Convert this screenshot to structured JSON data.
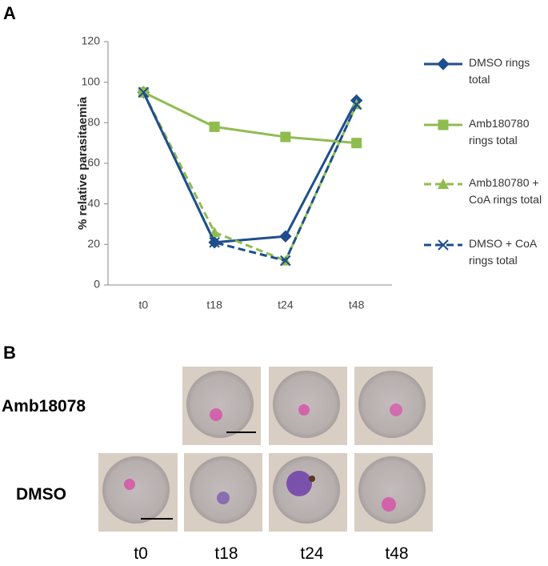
{
  "chart_data": {
    "type": "line",
    "panel": "A",
    "ylabel": "% relative parasitaemia",
    "categories": [
      "t0",
      "t18",
      "t24",
      "t48"
    ],
    "series": [
      {
        "name": "DMSO rings total",
        "color": "#1f4e8c",
        "marker": "diamond",
        "dashed": false,
        "values": [
          95,
          21,
          24,
          91
        ]
      },
      {
        "name": "Amb180780 rings total",
        "color": "#8fbc4f",
        "marker": "square",
        "dashed": false,
        "values": [
          95,
          78,
          73,
          70
        ]
      },
      {
        "name": "Amb180780 + CoA rings total",
        "color": "#8fbc4f",
        "marker": "triangle",
        "dashed": true,
        "values": [
          95,
          26,
          12,
          89
        ]
      },
      {
        "name": "DMSO + CoA rings total",
        "color": "#1f4e8c",
        "marker": "x",
        "dashed": true,
        "values": [
          95,
          21,
          12,
          89
        ]
      }
    ],
    "ylim": [
      0,
      120
    ],
    "yticks": [
      0,
      20,
      40,
      60,
      80,
      100,
      120
    ]
  },
  "panel_b": {
    "panel": "B",
    "rows": [
      "Amb18078",
      "DMSO"
    ],
    "times": [
      "t0",
      "t18",
      "t24",
      "t48"
    ]
  }
}
